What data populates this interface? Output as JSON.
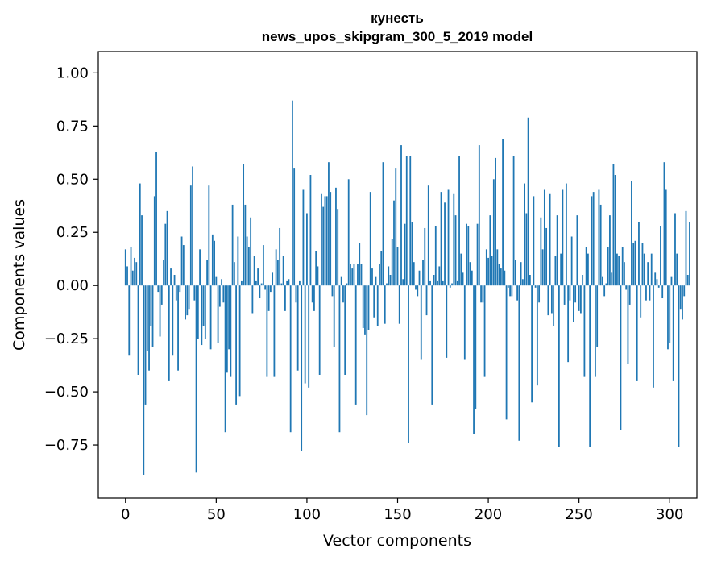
{
  "chart_data": {
    "type": "bar",
    "title_lines": [
      "кунесть",
      "news_upos_skipgram_300_5_2019 model"
    ],
    "xlabel": "Vector components",
    "ylabel": "Components values",
    "xlim": [
      -15,
      315
    ],
    "ylim": [
      -1.0,
      1.1
    ],
    "xticks": [
      {
        "value": 0,
        "label": "0"
      },
      {
        "value": 50,
        "label": "50"
      },
      {
        "value": 100,
        "label": "100"
      },
      {
        "value": 150,
        "label": "150"
      },
      {
        "value": 200,
        "label": "200"
      },
      {
        "value": 250,
        "label": "250"
      },
      {
        "value": 300,
        "label": "300"
      }
    ],
    "yticks": [
      {
        "value": 1.0,
        "label": "1.00"
      },
      {
        "value": 0.75,
        "label": "0.75"
      },
      {
        "value": 0.5,
        "label": "0.50"
      },
      {
        "value": 0.25,
        "label": "0.25"
      },
      {
        "value": 0.0,
        "label": "0.00"
      },
      {
        "value": -0.25,
        "label": "−0.25"
      },
      {
        "value": -0.5,
        "label": "−0.50"
      },
      {
        "value": -0.75,
        "label": "−0.75"
      }
    ],
    "bar_color": "#1f77b4",
    "values": [
      0.17,
      0.09,
      -0.33,
      0.18,
      0.07,
      0.13,
      0.11,
      -0.42,
      0.48,
      0.33,
      -0.89,
      -0.56,
      -0.31,
      -0.4,
      -0.19,
      -0.29,
      0.42,
      0.63,
      -0.03,
      -0.24,
      -0.09,
      0.12,
      0.29,
      0.35,
      -0.45,
      0.08,
      -0.33,
      0.05,
      -0.07,
      -0.4,
      -0.03,
      0.23,
      0.19,
      -0.16,
      -0.14,
      -0.11,
      0.47,
      0.56,
      -0.07,
      -0.88,
      -0.25,
      0.17,
      -0.28,
      -0.19,
      -0.25,
      0.12,
      0.47,
      -0.3,
      0.24,
      0.21,
      0.04,
      -0.27,
      -0.1,
      0.03,
      -0.08,
      -0.69,
      -0.41,
      -0.3,
      -0.43,
      0.38,
      0.11,
      -0.56,
      0.23,
      -0.52,
      0.02,
      0.57,
      0.38,
      0.23,
      0.18,
      0.32,
      -0.13,
      0.14,
      0.02,
      0.08,
      -0.06,
      0.01,
      0.19,
      -0.02,
      -0.43,
      -0.12,
      -0.03,
      0.06,
      -0.43,
      0.17,
      0.12,
      0.27,
      0.01,
      0.14,
      -0.12,
      0.02,
      0.03,
      -0.69,
      0.87,
      0.55,
      -0.08,
      -0.4,
      0.02,
      -0.78,
      0.45,
      -0.46,
      0.34,
      -0.48,
      0.52,
      -0.08,
      -0.12,
      0.16,
      0.09,
      -0.42,
      0.43,
      0.37,
      0.42,
      0.42,
      0.58,
      0.44,
      -0.05,
      -0.29,
      0.46,
      0.36,
      -0.69,
      0.04,
      -0.08,
      -0.42,
      0.01,
      0.5,
      0.1,
      0.08,
      0.1,
      -0.56,
      0.1,
      0.2,
      0.1,
      -0.2,
      -0.23,
      -0.61,
      -0.21,
      0.44,
      0.08,
      -0.15,
      0.04,
      -0.19,
      0.1,
      0.16,
      0.58,
      -0.18,
      0.01,
      0.09,
      0.05,
      0.22,
      0.4,
      0.55,
      0.18,
      -0.18,
      0.66,
      0.03,
      0.29,
      0.61,
      -0.74,
      0.61,
      0.3,
      0.11,
      -0.02,
      -0.05,
      0.07,
      -0.35,
      0.12,
      0.27,
      -0.14,
      0.47,
      0.02,
      -0.56,
      0.05,
      0.28,
      0.02,
      0.09,
      0.44,
      0.02,
      0.39,
      -0.34,
      0.45,
      -0.01,
      0.01,
      0.43,
      0.33,
      0.02,
      0.61,
      0.15,
      0.06,
      -0.35,
      0.29,
      0.28,
      0.11,
      0.07,
      -0.7,
      -0.58,
      0.29,
      0.66,
      -0.08,
      -0.08,
      -0.43,
      0.17,
      0.13,
      0.33,
      0.14,
      0.5,
      0.6,
      0.17,
      0.1,
      0.08,
      0.69,
      0.07,
      -0.63,
      -0.01,
      -0.05,
      -0.05,
      0.61,
      0.12,
      -0.07,
      -0.73,
      0.11,
      0.03,
      0.48,
      0.34,
      0.79,
      0.05,
      -0.55,
      0.42,
      -0.01,
      -0.47,
      -0.08,
      0.32,
      0.17,
      0.45,
      0.27,
      -0.14,
      0.43,
      -0.13,
      -0.19,
      0.14,
      0.33,
      -0.76,
      0.15,
      0.45,
      -0.09,
      0.48,
      -0.36,
      -0.07,
      0.23,
      -0.17,
      -0.08,
      0.33,
      -0.12,
      -0.13,
      0.05,
      -0.43,
      0.18,
      0.15,
      -0.76,
      0.42,
      0.44,
      -0.43,
      -0.29,
      0.45,
      0.38,
      0.04,
      -0.05,
      0.01,
      0.18,
      0.33,
      0.06,
      0.57,
      0.52,
      0.15,
      0.14,
      -0.68,
      0.18,
      0.11,
      -0.02,
      -0.37,
      -0.09,
      0.49,
      0.2,
      0.21,
      -0.45,
      0.3,
      -0.15,
      0.2,
      0.15,
      -0.07,
      0.11,
      -0.07,
      0.15,
      -0.48,
      0.06,
      0.03,
      -0.01,
      0.28,
      -0.06,
      0.58,
      0.45,
      -0.3,
      -0.27,
      0.04,
      -0.45,
      0.34,
      0.15,
      -0.76,
      -0.11,
      -0.16,
      -0.05,
      0.35,
      0.05,
      0.3
    ]
  }
}
